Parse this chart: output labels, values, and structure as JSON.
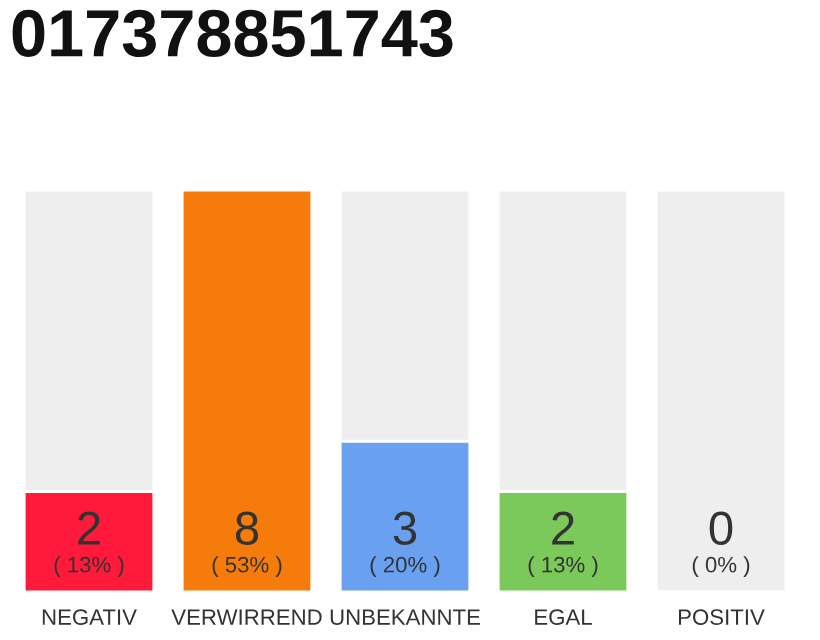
{
  "chart_data": {
    "type": "bar",
    "title": "017378851743",
    "categories": [
      "NEGATIV",
      "VERWIRREND",
      "UNBEKANNTE",
      "EGAL",
      "POSITIV"
    ],
    "values": [
      2,
      8,
      3,
      2,
      0
    ],
    "colors": [
      "#ff1a3c",
      "#f57c0a",
      "#6aa0f0",
      "#7ac95a",
      null
    ],
    "data_labels": true,
    "annotations": [
      {
        "text": "( 13% )",
        "x": "NEGATIV",
        "y": 0
      },
      {
        "text": "( 53% )",
        "x": "VERWIRREND",
        "y": 0
      },
      {
        "text": "( 20% )",
        "x": "UNBEKANNTE",
        "y": 0
      },
      {
        "text": "( 13% )",
        "x": "EGAL",
        "y": 0
      },
      {
        "text": "( 0% )",
        "x": "POSITIV",
        "y": 0
      }
    ],
    "ylim": [
      0,
      8
    ],
    "tick_labels": "x",
    "grid": false,
    "legend": false
  }
}
